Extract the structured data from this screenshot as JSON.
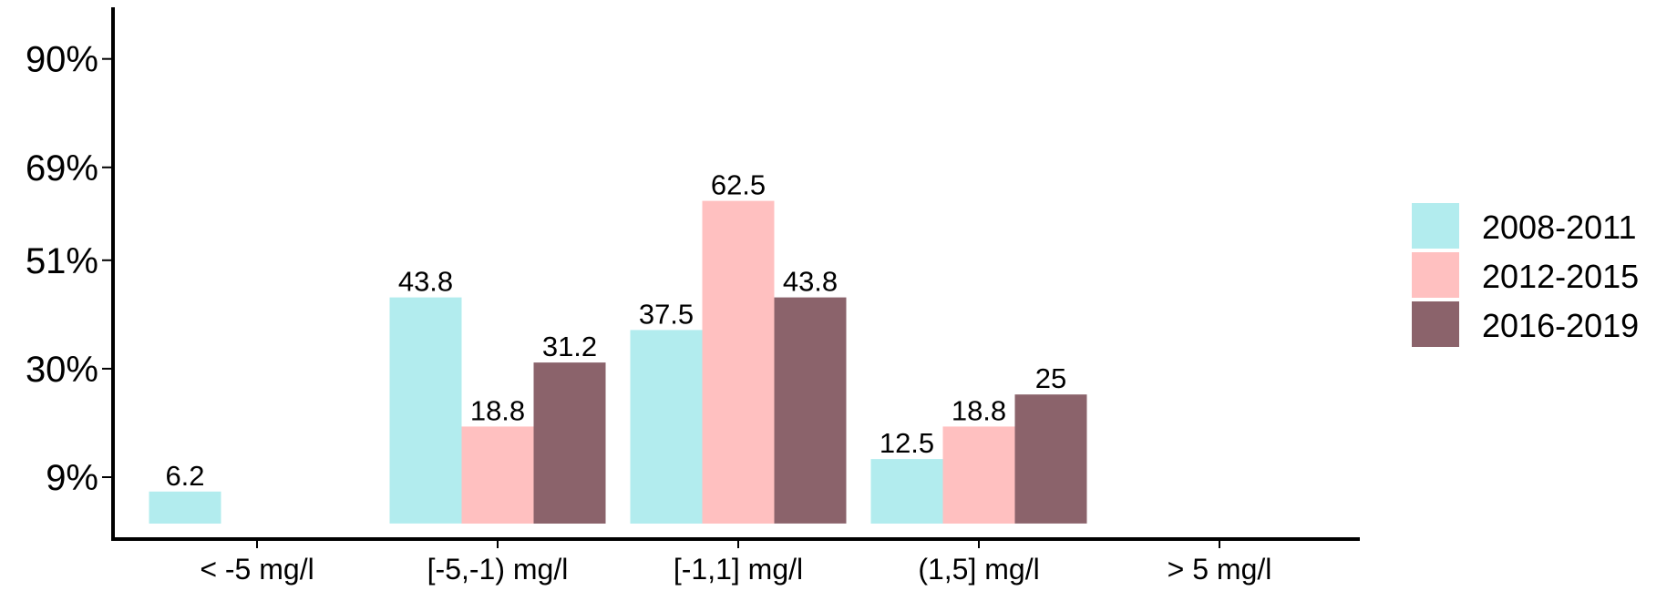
{
  "chart_data": {
    "type": "bar",
    "title": "",
    "xlabel": "",
    "ylabel": "",
    "categories": [
      "< -5 mg/l",
      "[-5,-1) mg/l",
      "[-1,1] mg/l",
      "(1,5] mg/l",
      "> 5 mg/l"
    ],
    "yticks": [
      {
        "label": "9%",
        "value": 9
      },
      {
        "label": "30%",
        "value": 30
      },
      {
        "label": "51%",
        "value": 51
      },
      {
        "label": "69%",
        "value": 69
      },
      {
        "label": "90%",
        "value": 90
      }
    ],
    "ylim": [
      -3,
      100
    ],
    "legend_position": "right",
    "grid": false,
    "series": [
      {
        "name": "2008-2011",
        "color": "#b2ecee",
        "values": [
          6.2,
          43.8,
          37.5,
          12.5,
          null
        ],
        "labels": [
          "6.2",
          "43.8",
          "37.5",
          "12.5",
          ""
        ]
      },
      {
        "name": "2012-2015",
        "color": "#ffc0c0",
        "values": [
          null,
          18.8,
          62.5,
          18.8,
          null
        ],
        "labels": [
          "",
          "18.8",
          "62.5",
          "18.8",
          ""
        ]
      },
      {
        "name": "2016-2019",
        "color": "#8b636b",
        "values": [
          null,
          31.2,
          43.8,
          25,
          null
        ],
        "labels": [
          "",
          "31.2",
          "43.8",
          "25",
          ""
        ]
      }
    ]
  }
}
